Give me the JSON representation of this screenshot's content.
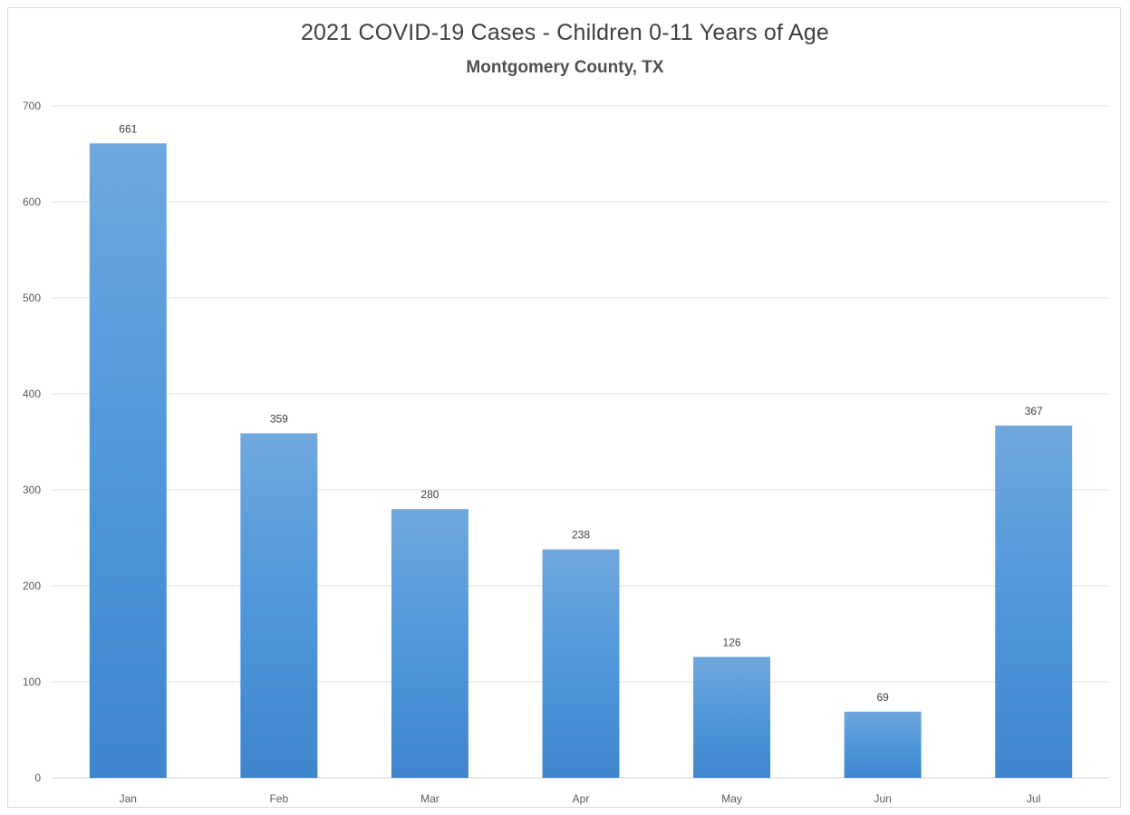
{
  "chart_data": {
    "type": "bar",
    "title": "2021 COVID-19 Cases - Children 0-11 Years of Age",
    "subtitle": "Montgomery County, TX",
    "categories": [
      "Jan",
      "Feb",
      "Mar",
      "Apr",
      "May",
      "Jun",
      "Jul"
    ],
    "values": [
      661,
      359,
      280,
      238,
      126,
      69,
      367
    ],
    "xlabel": "",
    "ylabel": "",
    "ylim": [
      0,
      700
    ],
    "yticks": [
      0,
      100,
      200,
      300,
      400,
      500,
      600,
      700
    ],
    "grid": true,
    "legend": "none",
    "data_labels": true,
    "colors": {
      "bar_top": "#6fa7de",
      "bar_bottom": "#3f86cd",
      "grid": "#e0e0e0",
      "axis": "#d0d0d0"
    }
  }
}
